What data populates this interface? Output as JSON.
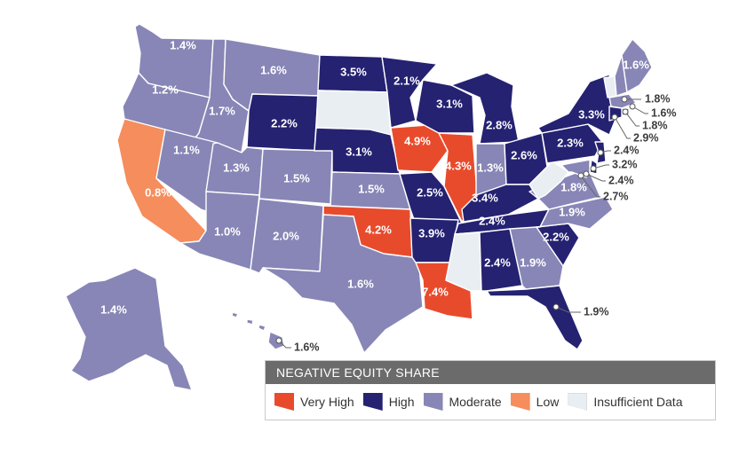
{
  "colors": {
    "very_high": "#e84b2c",
    "high": "#252272",
    "moderate": "#8886b6",
    "low": "#f58d5c",
    "insufficient": "#e8eef2"
  },
  "legend": {
    "title": "NEGATIVE EQUITY SHARE",
    "items": [
      {
        "key": "very_high",
        "label": "Very High"
      },
      {
        "key": "high",
        "label": "High"
      },
      {
        "key": "moderate",
        "label": "Moderate"
      },
      {
        "key": "low",
        "label": "Low"
      },
      {
        "key": "insufficient",
        "label": "Insufficient Data"
      }
    ]
  },
  "states": {
    "WA": {
      "category": "moderate",
      "value": "1.4%"
    },
    "OR": {
      "category": "moderate",
      "value": "1.2%"
    },
    "CA": {
      "category": "low",
      "value": "0.8%"
    },
    "ID": {
      "category": "moderate",
      "value": "1.7%"
    },
    "NV": {
      "category": "moderate",
      "value": "1.1%"
    },
    "MT": {
      "category": "moderate",
      "value": "1.6%"
    },
    "WY": {
      "category": "high",
      "value": "2.2%"
    },
    "UT": {
      "category": "moderate",
      "value": "1.3%"
    },
    "AZ": {
      "category": "moderate",
      "value": "1.0%"
    },
    "CO": {
      "category": "moderate",
      "value": "1.5%"
    },
    "NM": {
      "category": "moderate",
      "value": "2.0%"
    },
    "ND": {
      "category": "high",
      "value": "3.5%"
    },
    "SD": {
      "category": "insufficient",
      "value": ""
    },
    "NE": {
      "category": "high",
      "value": "3.1%"
    },
    "KS": {
      "category": "moderate",
      "value": "1.5%"
    },
    "OK": {
      "category": "very_high",
      "value": "4.2%"
    },
    "TX": {
      "category": "moderate",
      "value": "1.6%"
    },
    "MN": {
      "category": "high",
      "value": "2.1%"
    },
    "IA": {
      "category": "very_high",
      "value": "4.9%"
    },
    "MO": {
      "category": "high",
      "value": "2.5%"
    },
    "AR": {
      "category": "high",
      "value": "3.9%"
    },
    "LA": {
      "category": "very_high",
      "value": "7.4%"
    },
    "WI": {
      "category": "high",
      "value": "3.1%"
    },
    "IL": {
      "category": "very_high",
      "value": "4.3%"
    },
    "MI": {
      "category": "high",
      "value": "2.8%"
    },
    "IN": {
      "category": "moderate",
      "value": "1.3%"
    },
    "OH": {
      "category": "high",
      "value": "2.6%"
    },
    "KY": {
      "category": "high",
      "value": "3.4%"
    },
    "TN": {
      "category": "high",
      "value": "2.4%"
    },
    "MS": {
      "category": "insufficient",
      "value": ""
    },
    "AL": {
      "category": "high",
      "value": "2.4%"
    },
    "GA": {
      "category": "moderate",
      "value": "1.9%"
    },
    "FL": {
      "category": "high",
      "value": "1.9%"
    },
    "SC": {
      "category": "high",
      "value": "2.2%"
    },
    "NC": {
      "category": "moderate",
      "value": "1.9%"
    },
    "VA": {
      "category": "moderate",
      "value": "1.8%"
    },
    "WV": {
      "category": "insufficient",
      "value": ""
    },
    "PA": {
      "category": "high",
      "value": "2.3%"
    },
    "NY": {
      "category": "high",
      "value": "3.3%"
    },
    "VT": {
      "category": "insufficient",
      "value": ""
    },
    "NH": {
      "category": "moderate",
      "value": "1.8%"
    },
    "ME": {
      "category": "moderate",
      "value": "1.6%"
    },
    "MA": {
      "category": "moderate",
      "value": "1.6%"
    },
    "RI": {
      "category": "moderate",
      "value": "1.8%"
    },
    "CT": {
      "category": "high",
      "value": "2.9%"
    },
    "NJ": {
      "category": "high",
      "value": "2.4%"
    },
    "DE": {
      "category": "high",
      "value": "3.2%"
    },
    "MD": {
      "category": "moderate",
      "value": "2.4%"
    },
    "DC": {
      "category": "moderate",
      "value": "2.7%"
    },
    "AK": {
      "category": "moderate",
      "value": "1.4%"
    },
    "HI": {
      "category": "moderate",
      "value": "1.6%"
    }
  }
}
